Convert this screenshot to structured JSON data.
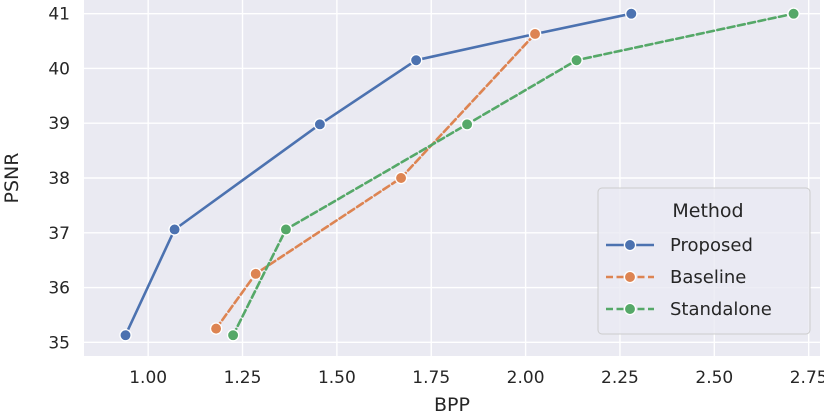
{
  "chart_data": {
    "type": "line",
    "title": "",
    "xlabel": "BPP",
    "ylabel": "PSNR",
    "xlim": [
      0.83,
      2.78
    ],
    "ylim": [
      34.75,
      41.25
    ],
    "xticks": [
      1.0,
      1.25,
      1.5,
      1.75,
      2.0,
      2.25,
      2.5,
      2.75
    ],
    "xtick_labels": [
      "1.00",
      "1.25",
      "1.50",
      "1.75",
      "2.00",
      "2.25",
      "2.50",
      "2.75"
    ],
    "yticks": [
      35,
      36,
      37,
      38,
      39,
      40,
      41
    ],
    "ytick_labels": [
      "35",
      "36",
      "37",
      "38",
      "39",
      "40",
      "41"
    ],
    "grid": true,
    "legend": {
      "title": "Method",
      "placement": "lower-right"
    },
    "series": [
      {
        "name": "Proposed",
        "color": "#4c72b0",
        "dash": "solid",
        "x": [
          0.94,
          1.07,
          1.455,
          1.71,
          2.025,
          2.28
        ],
        "y": [
          35.13,
          37.06,
          38.98,
          40.15,
          40.63,
          41.0
        ]
      },
      {
        "name": "Baseline",
        "color": "#dd8452",
        "dash": "dashed",
        "x": [
          1.18,
          1.285,
          1.67,
          2.025
        ],
        "y": [
          35.25,
          36.25,
          38.0,
          40.63
        ]
      },
      {
        "name": "Standalone",
        "color": "#55a868",
        "dash": "dashed",
        "x": [
          1.225,
          1.365,
          1.845,
          2.135,
          2.71
        ],
        "y": [
          35.13,
          37.06,
          38.98,
          40.15,
          41.0
        ]
      }
    ]
  }
}
